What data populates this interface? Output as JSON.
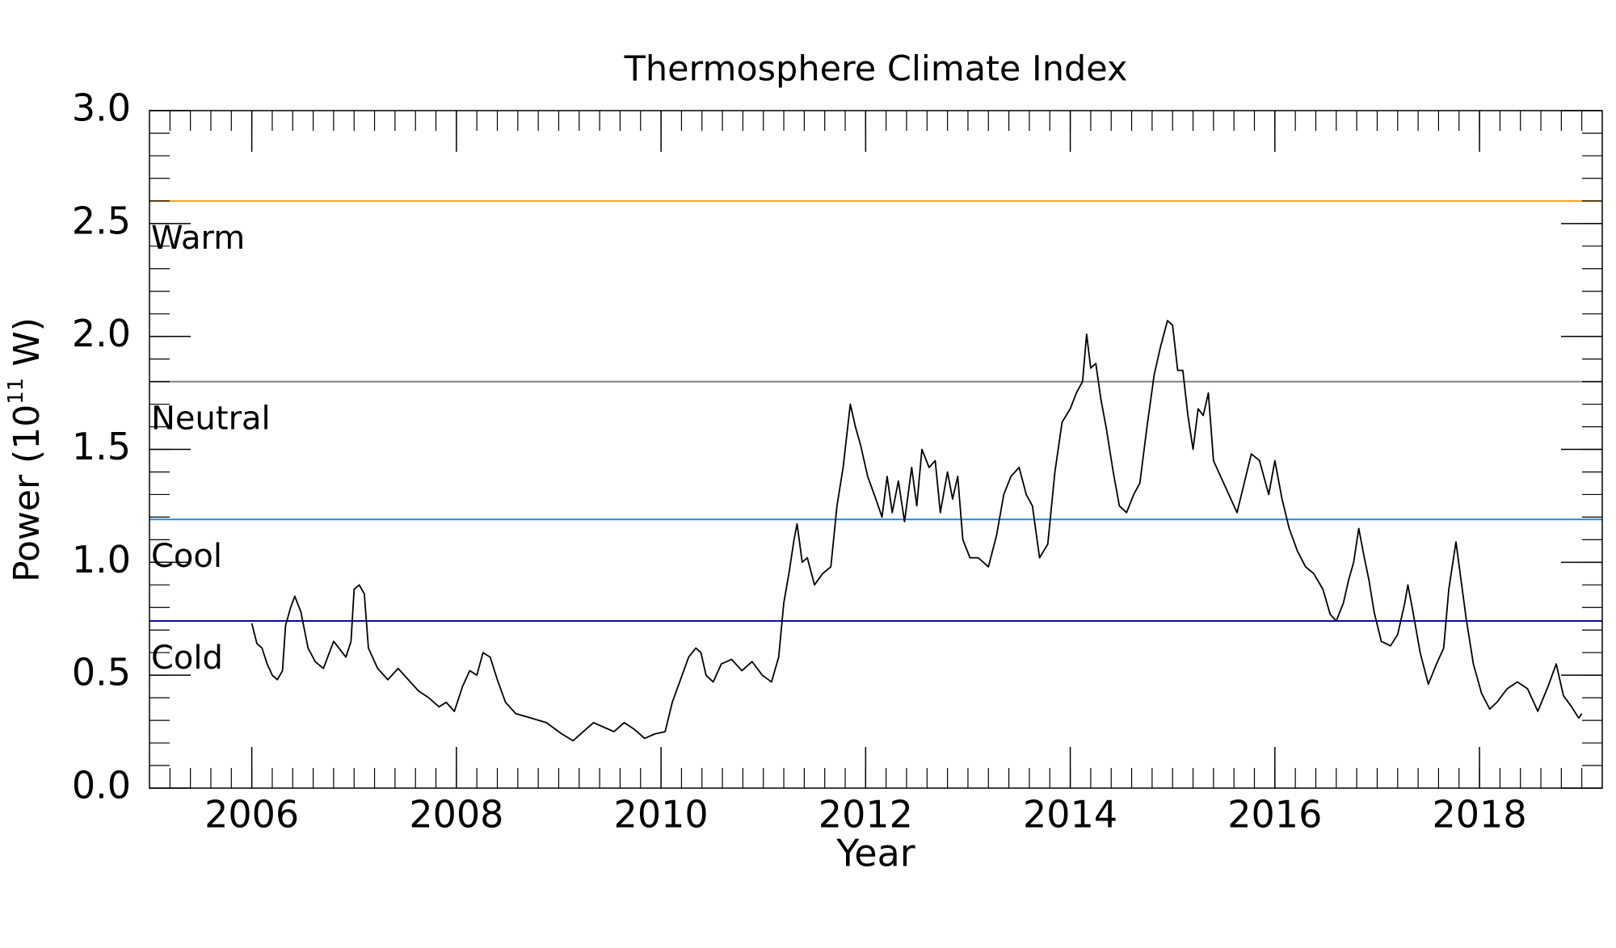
{
  "chart_data": {
    "type": "line",
    "title": "Thermosphere Climate Index",
    "xlabel": "Year",
    "ylabel": {
      "base": "Power (10",
      "exponent": "11",
      "unit": " W)"
    },
    "x": [
      2006.0,
      2006.05,
      2006.1,
      2006.15,
      2006.2,
      2006.25,
      2006.3,
      2006.33,
      2006.38,
      2006.42,
      2006.48,
      2006.55,
      2006.62,
      2006.7,
      2006.8,
      2006.92,
      2006.97,
      2007.0,
      2007.05,
      2007.1,
      2007.14,
      2007.23,
      2007.33,
      2007.43,
      2007.53,
      2007.63,
      2007.73,
      2007.83,
      2007.9,
      2007.98,
      2008.06,
      2008.13,
      2008.2,
      2008.26,
      2008.33,
      2008.4,
      2008.48,
      2008.58,
      2008.73,
      2008.88,
      2009.03,
      2009.14,
      2009.24,
      2009.34,
      2009.44,
      2009.54,
      2009.64,
      2009.74,
      2009.84,
      2009.94,
      2010.04,
      2010.11,
      2010.19,
      2010.27,
      2010.34,
      2010.39,
      2010.44,
      2010.51,
      2010.59,
      2010.69,
      2010.79,
      2010.89,
      2010.99,
      2011.08,
      2011.15,
      2011.2,
      2011.25,
      2011.3,
      2011.33,
      2011.38,
      2011.43,
      2011.5,
      2011.58,
      2011.66,
      2011.72,
      2011.78,
      2011.85,
      2011.9,
      2011.95,
      2012.02,
      2012.1,
      2012.16,
      2012.21,
      2012.26,
      2012.32,
      2012.38,
      2012.45,
      2012.5,
      2012.55,
      2012.62,
      2012.68,
      2012.73,
      2012.8,
      2012.85,
      2012.9,
      2012.95,
      2013.02,
      2013.1,
      2013.2,
      2013.28,
      2013.35,
      2013.42,
      2013.5,
      2013.57,
      2013.63,
      2013.7,
      2013.78,
      2013.85,
      2013.92,
      2014.0,
      2014.06,
      2014.12,
      2014.16,
      2014.2,
      2014.25,
      2014.3,
      2014.35,
      2014.42,
      2014.48,
      2014.55,
      2014.62,
      2014.68,
      2014.75,
      2014.82,
      2014.88,
      2014.95,
      2015.0,
      2015.05,
      2015.1,
      2015.15,
      2015.2,
      2015.25,
      2015.3,
      2015.35,
      2015.4,
      2015.47,
      2015.55,
      2015.63,
      2015.7,
      2015.77,
      2015.85,
      2015.94,
      2016.0,
      2016.07,
      2016.14,
      2016.22,
      2016.3,
      2016.38,
      2016.47,
      2016.54,
      2016.6,
      2016.67,
      2016.72,
      2016.77,
      2016.82,
      2016.87,
      2016.92,
      2016.97,
      2017.04,
      2017.13,
      2017.2,
      2017.27,
      2017.3,
      2017.35,
      2017.42,
      2017.5,
      2017.58,
      2017.65,
      2017.7,
      2017.77,
      2017.82,
      2017.87,
      2017.94,
      2018.02,
      2018.1,
      2018.17,
      2018.27,
      2018.37,
      2018.47,
      2018.57,
      2018.67,
      2018.75,
      2018.82,
      2018.9,
      2018.97,
      2019.0
    ],
    "series": [
      {
        "color": "#000000",
        "values": [
          0.73,
          0.64,
          0.62,
          0.55,
          0.5,
          0.48,
          0.52,
          0.72,
          0.8,
          0.85,
          0.78,
          0.62,
          0.56,
          0.53,
          0.65,
          0.58,
          0.65,
          0.88,
          0.9,
          0.86,
          0.62,
          0.53,
          0.48,
          0.53,
          0.48,
          0.43,
          0.4,
          0.36,
          0.38,
          0.34,
          0.45,
          0.52,
          0.5,
          0.6,
          0.58,
          0.48,
          0.38,
          0.33,
          0.31,
          0.29,
          0.24,
          0.21,
          0.25,
          0.29,
          0.27,
          0.25,
          0.29,
          0.26,
          0.22,
          0.24,
          0.25,
          0.38,
          0.48,
          0.58,
          0.62,
          0.6,
          0.5,
          0.47,
          0.55,
          0.57,
          0.52,
          0.56,
          0.5,
          0.47,
          0.58,
          0.82,
          0.95,
          1.1,
          1.17,
          1.0,
          1.02,
          0.9,
          0.95,
          0.98,
          1.25,
          1.42,
          1.7,
          1.6,
          1.52,
          1.38,
          1.28,
          1.2,
          1.38,
          1.22,
          1.36,
          1.18,
          1.42,
          1.25,
          1.5,
          1.42,
          1.45,
          1.22,
          1.4,
          1.28,
          1.38,
          1.1,
          1.02,
          1.02,
          0.98,
          1.12,
          1.3,
          1.38,
          1.42,
          1.3,
          1.25,
          1.02,
          1.08,
          1.4,
          1.62,
          1.68,
          1.75,
          1.8,
          2.01,
          1.86,
          1.88,
          1.72,
          1.6,
          1.4,
          1.25,
          1.22,
          1.3,
          1.35,
          1.6,
          1.83,
          1.95,
          2.07,
          2.05,
          1.85,
          1.85,
          1.65,
          1.5,
          1.68,
          1.65,
          1.75,
          1.45,
          1.38,
          1.3,
          1.22,
          1.35,
          1.48,
          1.45,
          1.3,
          1.45,
          1.28,
          1.15,
          1.05,
          0.98,
          0.95,
          0.88,
          0.77,
          0.74,
          0.82,
          0.92,
          1.0,
          1.15,
          1.03,
          0.92,
          0.78,
          0.65,
          0.63,
          0.68,
          0.82,
          0.9,
          0.78,
          0.6,
          0.46,
          0.55,
          0.62,
          0.88,
          1.09,
          0.92,
          0.75,
          0.55,
          0.42,
          0.35,
          0.38,
          0.44,
          0.47,
          0.44,
          0.34,
          0.45,
          0.55,
          0.41,
          0.36,
          0.31,
          0.33
        ]
      }
    ],
    "reference_lines": [
      {
        "label": "Warm",
        "value": 2.6,
        "color": "#f5a020"
      },
      {
        "label": "Neutral",
        "value": 1.8,
        "color": "#808080"
      },
      {
        "label": "Cool",
        "value": 1.19,
        "color": "#1e88e0"
      },
      {
        "label": "Cold",
        "value": 0.74,
        "color": "#0a0aa0"
      }
    ],
    "xlim": [
      2005.0,
      2019.2
    ],
    "ylim": [
      0,
      3
    ],
    "xticks": [
      2006,
      2008,
      2010,
      2012,
      2014,
      2016,
      2018
    ],
    "yticks": [
      {
        "value": 0,
        "label": "0.0"
      },
      {
        "value": 0.5,
        "label": "0.5"
      },
      {
        "value": 1,
        "label": "1.0"
      },
      {
        "value": 1.5,
        "label": "1.5"
      },
      {
        "value": 2,
        "label": "2.0"
      },
      {
        "value": 2.5,
        "label": "2.5"
      },
      {
        "value": 3,
        "label": "3.0"
      }
    ],
    "xminor": 0.2,
    "yminor": 0.1,
    "grid": false
  }
}
